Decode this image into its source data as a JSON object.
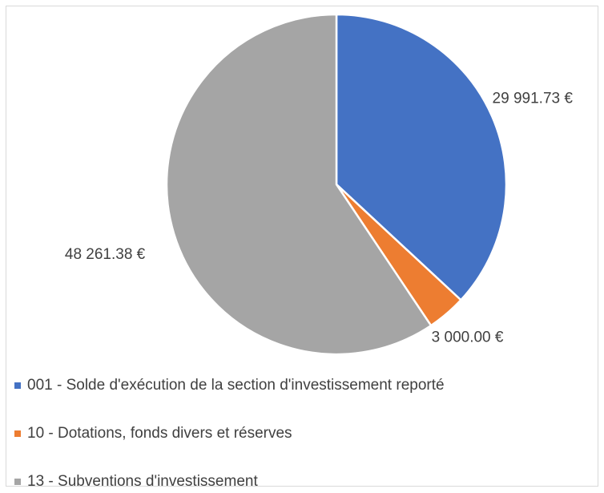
{
  "chart_data": {
    "type": "pie",
    "categories": [
      "001 - Solde d'exécution de la section d'investissement reporté",
      "10 - Dotations, fonds divers et réserves",
      "13 - Subventions d'investissement"
    ],
    "values": [
      29991.73,
      3000.0,
      48261.38
    ],
    "value_labels": [
      "29 991.73 €",
      "3 000.00 €",
      "48 261.38 €"
    ],
    "colors": [
      "#4472c4",
      "#ed7d31",
      "#a5a5a5"
    ],
    "legend": "bottom"
  }
}
